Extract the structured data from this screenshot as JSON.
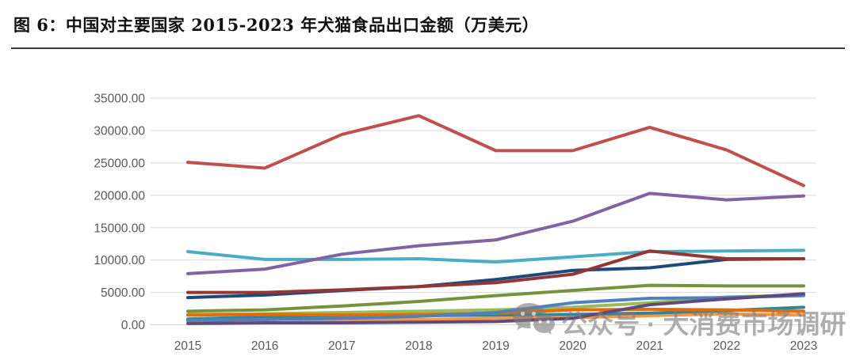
{
  "header": {
    "title": "图 6：中国对主要国家 2015-2023 年犬猫食品出口金额（万美元）"
  },
  "watermark": {
    "icon": "wechat-logo",
    "text": "公众号 · 大消费市场调研"
  },
  "chart_data": {
    "type": "line",
    "title": "图 6：中国对主要国家 2015-2023 年犬猫食品出口金额（万美元）",
    "unit": "万美元",
    "x": [
      "2015",
      "2016",
      "2017",
      "2018",
      "2019",
      "2020",
      "2021",
      "2022",
      "2023"
    ],
    "y_ticks": [
      "0.00",
      "5000.00",
      "10000.00",
      "15000.00",
      "20000.00",
      "25000.00",
      "30000.00",
      "35000.00"
    ],
    "ylim": [
      0,
      35000
    ],
    "grid": "horizontal",
    "legend": "none",
    "series": [
      {
        "name": "light-green",
        "color": "#9BBB59",
        "values": [
          1600,
          1700,
          1900,
          2100,
          2300,
          2700,
          3400,
          4300,
          4600
        ]
      },
      {
        "name": "light-orange",
        "color": "#F79646",
        "values": [
          500,
          900,
          700,
          800,
          1000,
          1100,
          1400,
          1700,
          1500
        ]
      },
      {
        "name": "dark-teal",
        "color": "#31859B",
        "values": [
          900,
          1200,
          1300,
          1400,
          1500,
          1600,
          1800,
          2200,
          2700
        ]
      },
      {
        "name": "dark-orange",
        "color": "#E36C09",
        "values": [
          1500,
          1600,
          1500,
          1600,
          1800,
          2300,
          2400,
          2300,
          2100
        ]
      },
      {
        "name": "steel-blue",
        "color": "#4F81BD",
        "values": [
          700,
          800,
          1000,
          1300,
          1900,
          3400,
          4100,
          4200,
          4500
        ]
      },
      {
        "name": "dark-purple",
        "color": "#604A7B",
        "values": [
          200,
          300,
          300,
          400,
          500,
          1000,
          3100,
          4000,
          4800
        ]
      },
      {
        "name": "olive-green",
        "color": "#76933C",
        "values": [
          2100,
          2300,
          2900,
          3600,
          4500,
          5300,
          6100,
          6000,
          6000
        ]
      },
      {
        "name": "navy-blue",
        "color": "#1F497D",
        "values": [
          4200,
          4600,
          5300,
          5900,
          7000,
          8400,
          8800,
          10100,
          10200
        ]
      },
      {
        "name": "cyan",
        "color": "#4BACC6",
        "values": [
          11300,
          10100,
          10100,
          10200,
          9700,
          10500,
          11300,
          11400,
          11500
        ]
      },
      {
        "name": "dark-red",
        "color": "#943634",
        "values": [
          5000,
          5000,
          5400,
          5900,
          6500,
          7800,
          11400,
          10200,
          10200
        ]
      },
      {
        "name": "purple",
        "color": "#8064A2",
        "values": [
          7900,
          8600,
          10900,
          12200,
          13100,
          16000,
          20300,
          19300,
          19900
        ]
      },
      {
        "name": "red",
        "color": "#C0504D",
        "values": [
          25100,
          24200,
          29400,
          32300,
          26900,
          26900,
          30500,
          27000,
          21500
        ]
      }
    ]
  }
}
